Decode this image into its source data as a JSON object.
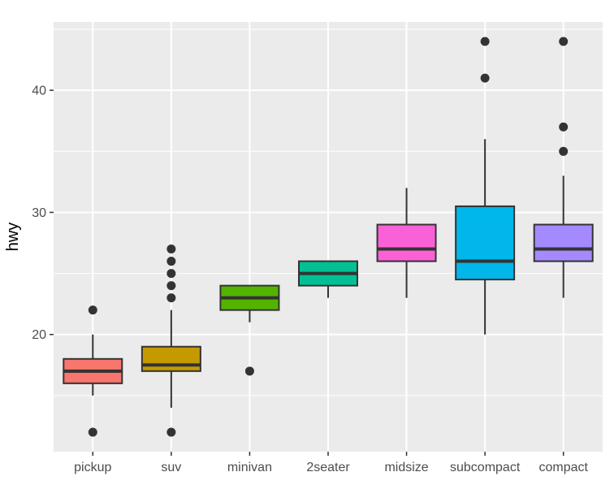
{
  "chart_data": {
    "type": "boxplot",
    "title": "",
    "xlabel": "",
    "ylabel": "hwy",
    "ylim": [
      10.4,
      45.6
    ],
    "y_major_ticks": [
      20,
      30,
      40
    ],
    "y_minor_ticks": [
      15,
      25,
      35,
      45
    ],
    "grid": true,
    "legend": "none",
    "categories": [
      "pickup",
      "suv",
      "minivan",
      "2seater",
      "midsize",
      "subcompact",
      "compact"
    ],
    "boxes": [
      {
        "category": "pickup",
        "color": "#F8766D",
        "lower_whisker": 15,
        "q1": 16,
        "median": 17,
        "q3": 18,
        "upper_whisker": 20,
        "outliers": [
          12,
          22
        ]
      },
      {
        "category": "suv",
        "color": "#C49A00",
        "lower_whisker": 14,
        "q1": 17,
        "median": 17.5,
        "q3": 19,
        "upper_whisker": 22,
        "outliers": [
          12,
          23,
          24,
          25,
          26,
          27
        ]
      },
      {
        "category": "minivan",
        "color": "#53B400",
        "lower_whisker": 21,
        "q1": 22,
        "median": 23,
        "q3": 24,
        "upper_whisker": 24,
        "outliers": [
          17
        ]
      },
      {
        "category": "2seater",
        "color": "#00C094",
        "lower_whisker": 23,
        "q1": 24,
        "median": 25,
        "q3": 26,
        "upper_whisker": 26,
        "outliers": []
      },
      {
        "category": "midsize",
        "color": "#FB61D7",
        "lower_whisker": 23,
        "q1": 26,
        "median": 27,
        "q3": 29,
        "upper_whisker": 32,
        "outliers": []
      },
      {
        "category": "subcompact",
        "color": "#00B6EB",
        "lower_whisker": 20,
        "q1": 24.5,
        "median": 26,
        "q3": 30.5,
        "upper_whisker": 36,
        "outliers": [
          41,
          44
        ]
      },
      {
        "category": "compact",
        "color": "#A58AFF",
        "lower_whisker": 23,
        "q1": 26,
        "median": 27,
        "q3": 29,
        "upper_whisker": 33,
        "outliers": [
          35,
          37,
          44
        ]
      }
    ]
  }
}
